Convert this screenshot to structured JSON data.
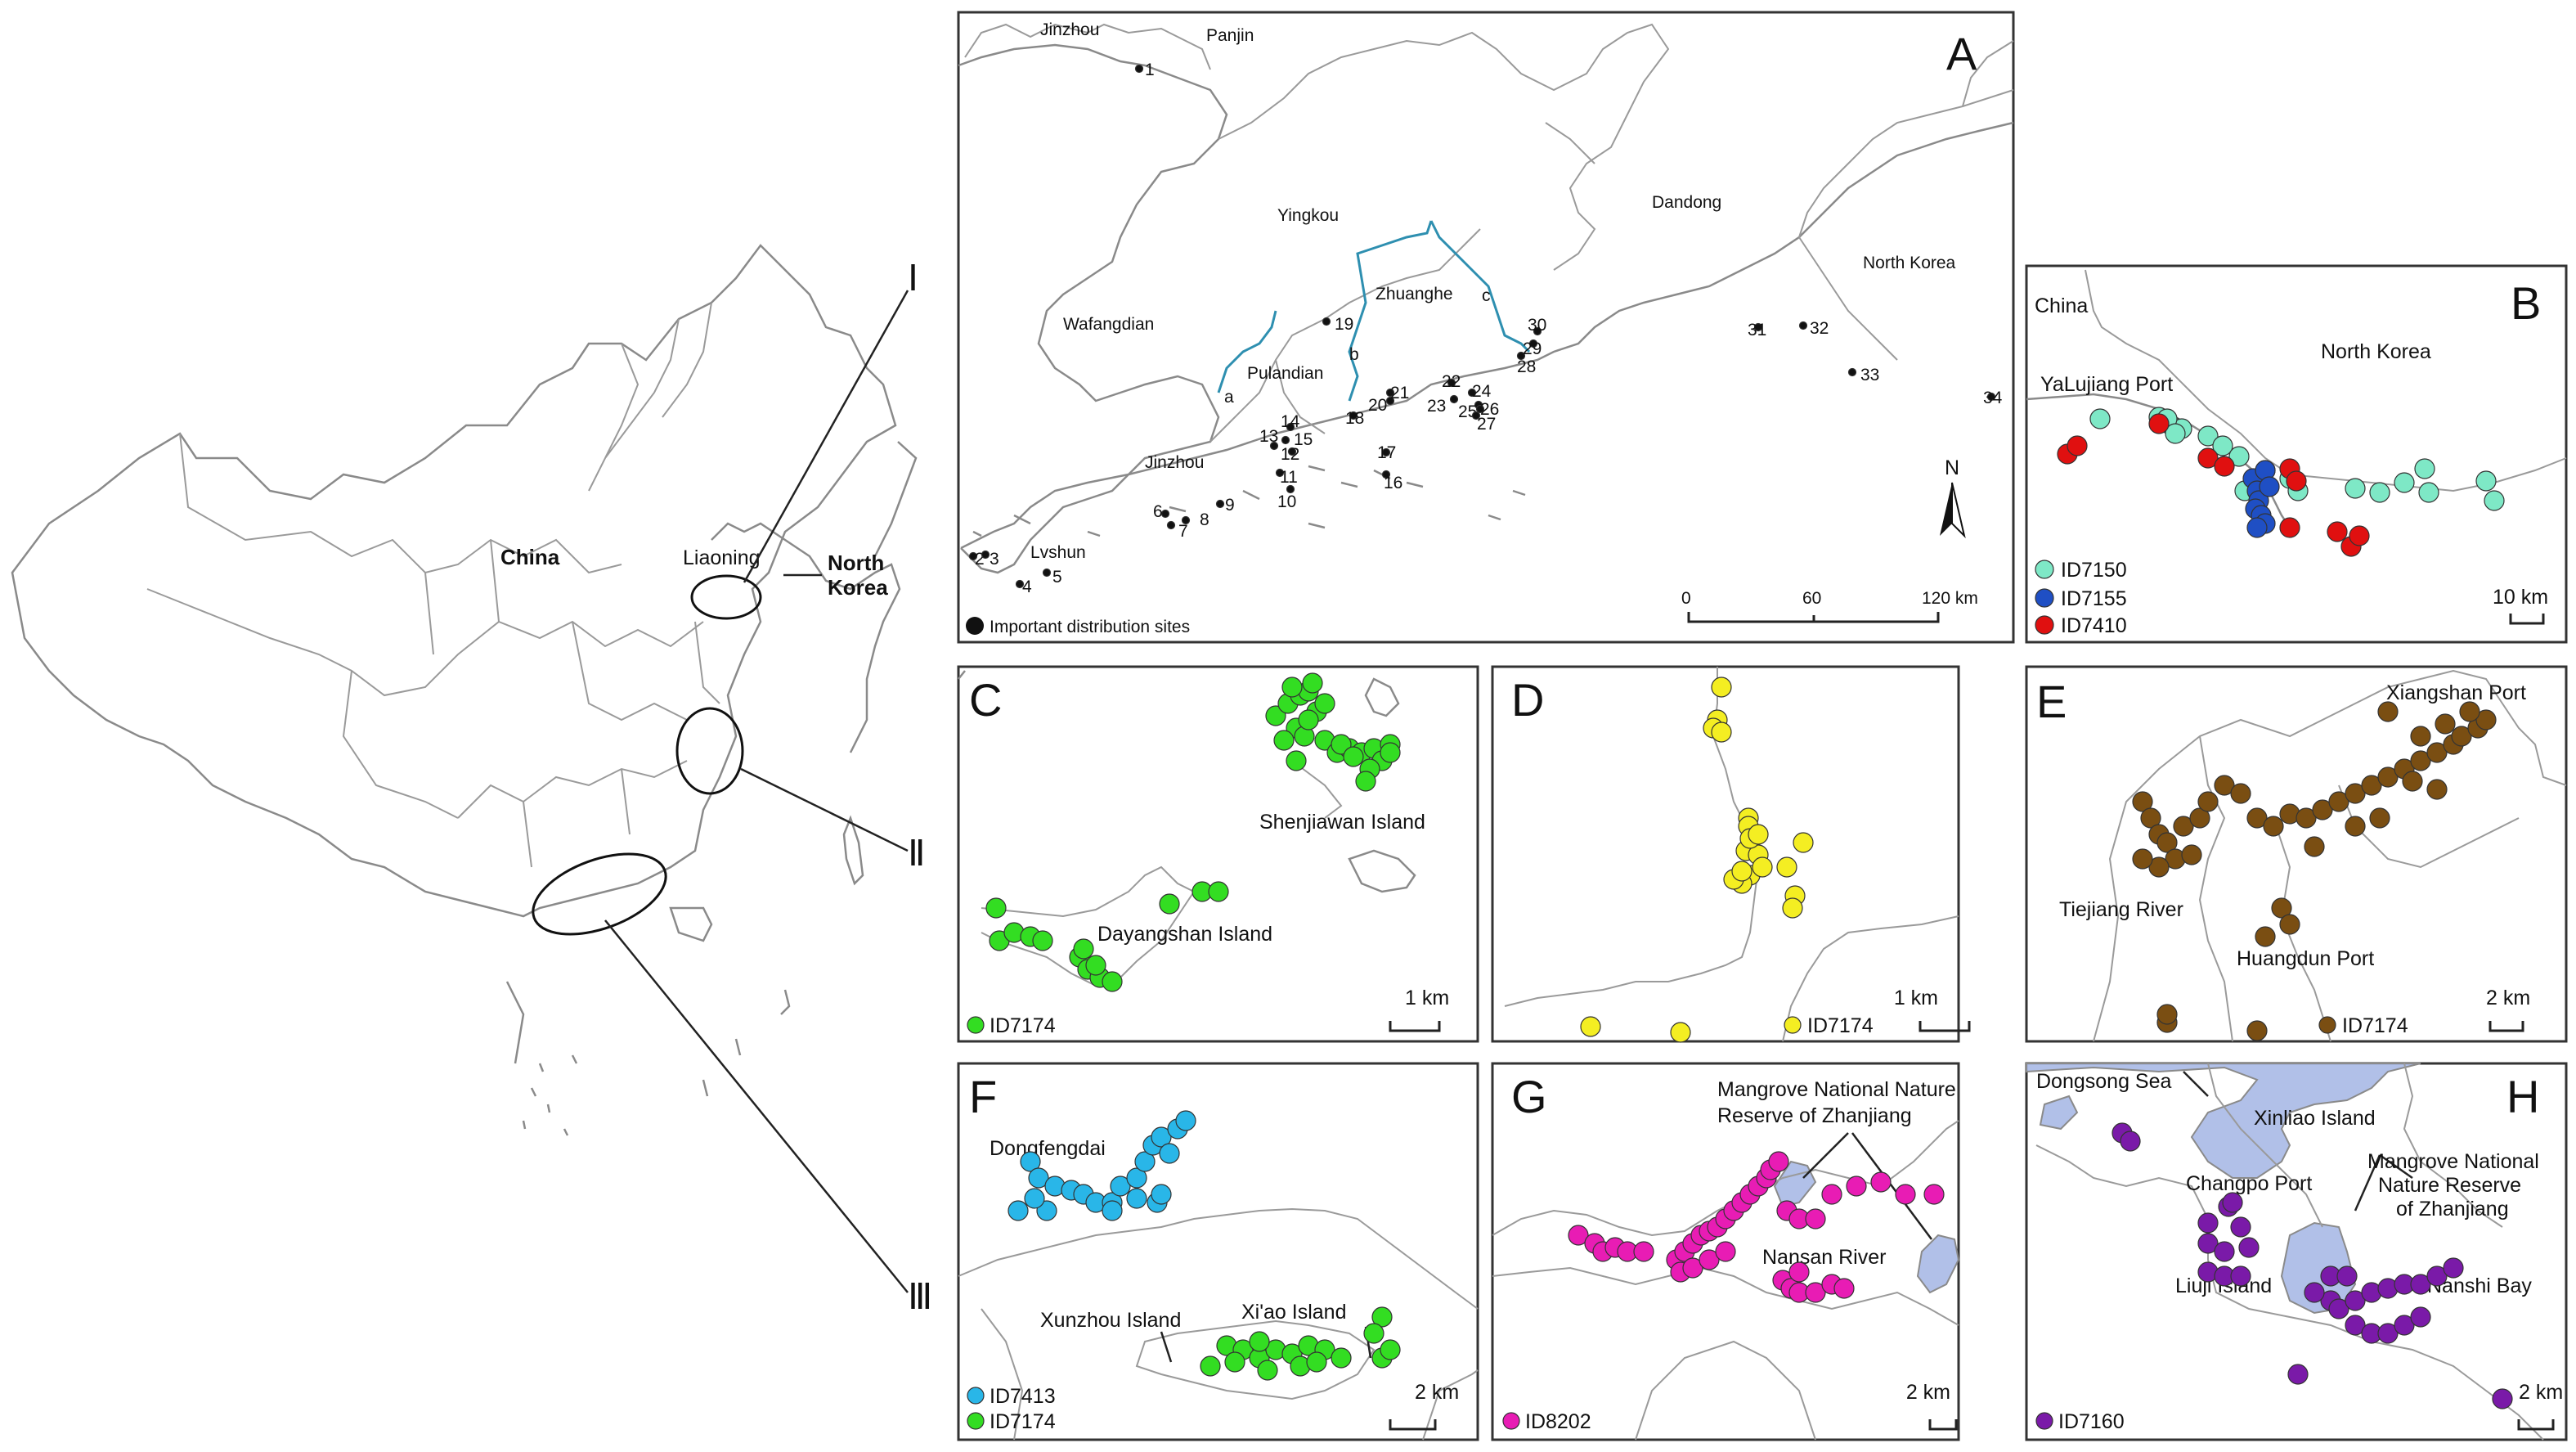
{
  "overview": {
    "china": "China",
    "liaoning": "Liaoning",
    "north_korea_line1": "North",
    "north_korea_line2": "Korea",
    "roman_1": "Ⅰ",
    "roman_2": "Ⅱ",
    "roman_3": "Ⅲ"
  },
  "panel_a": {
    "letter": "A",
    "places": [
      "Jinzhou",
      "Panjin",
      "Yingkou",
      "Dandong",
      "North Korea",
      "Wafangdian",
      "Zhuanghe",
      "Pulandian",
      "Jinzhou",
      "Lvshun"
    ],
    "rivers": [
      "a",
      "b",
      "c"
    ],
    "sites": [
      "1",
      "2",
      "3",
      "4",
      "5",
      "6",
      "7",
      "8",
      "9",
      "10",
      "11",
      "12",
      "13",
      "14",
      "15",
      "16",
      "17",
      "18",
      "19",
      "20",
      "21",
      "22",
      "23",
      "24",
      "25",
      "26",
      "27",
      "28",
      "29",
      "30",
      "31",
      "32",
      "33",
      "34"
    ],
    "north": "N",
    "scale": [
      "0",
      "60",
      "120 km"
    ],
    "legend": "Important distribution sites"
  },
  "panel_b": {
    "letter": "B",
    "places": [
      "China",
      "North Korea",
      "YaLujiang Port"
    ],
    "legend": [
      "ID7150",
      "ID7155",
      "ID7410"
    ],
    "scale": "10 km"
  },
  "panel_c": {
    "letter": "C",
    "places": [
      "Shenjiawan Island",
      "Dayangshan Island"
    ],
    "legend": "ID7174",
    "scale": "1 km"
  },
  "panel_d": {
    "letter": "D",
    "legend": "ID7174",
    "scale": "1 km"
  },
  "panel_e": {
    "letter": "E",
    "places": [
      "Xiangshan Port",
      "Tiejiang River",
      "Huangdun Port"
    ],
    "legend": "ID7174",
    "scale": "2 km"
  },
  "panel_f": {
    "letter": "F",
    "places": [
      "Dongfengdai",
      "Xunzhou Island",
      "Xi'ao Island"
    ],
    "legend": [
      "ID7413",
      "ID7174"
    ],
    "scale": "2 km"
  },
  "panel_g": {
    "letter": "G",
    "places": [
      "Mangrove National Nature",
      "Reserve of Zhanjiang",
      "Nansan River"
    ],
    "legend": "ID8202",
    "scale": "2 km"
  },
  "panel_h": {
    "letter": "H",
    "places": [
      "Dongsong Sea",
      "Xinliao Island",
      "Mangrove National",
      "Nature Reserve",
      "of Zhanjiang",
      "Changpo Port",
      "Liuji Island",
      "Nanshi Bay"
    ],
    "legend": "ID7160",
    "scale": "2 km"
  },
  "colors": {
    "ID7150": "#7ee8c6",
    "ID7155": "#1f4fc4",
    "ID7410": "#e01010",
    "ID7174": "#33dd22",
    "ID7174_yellow": "#f4ee22",
    "ID7174_brown": "#7a4e12",
    "ID7413": "#29b6e8",
    "ID8202": "#e81cb4",
    "ID7160": "#7a1aa8",
    "river": "#2e8fb0",
    "reserve": "#a9b9e6"
  }
}
